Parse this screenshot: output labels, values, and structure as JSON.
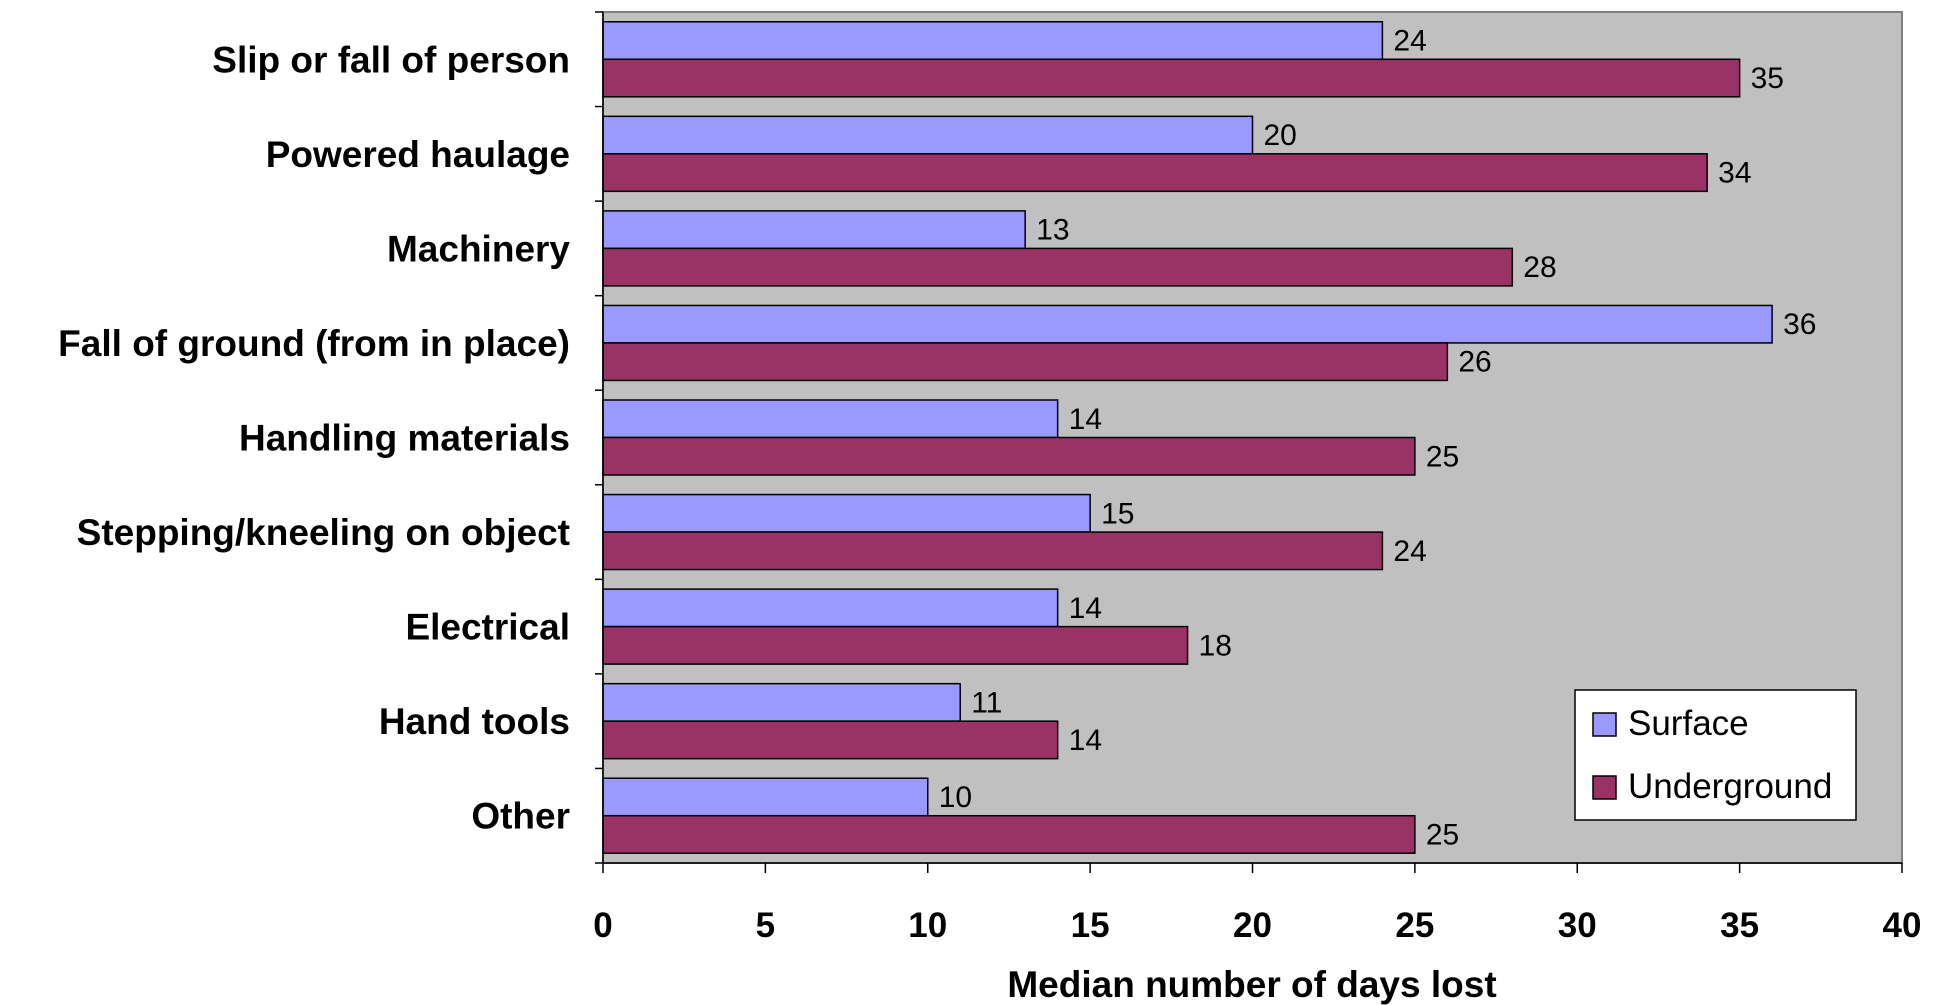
{
  "chart_data": {
    "type": "bar",
    "orientation": "horizontal",
    "categories": [
      "Slip or fall of person",
      "Powered haulage",
      "Machinery",
      "Fall of ground (from in place)",
      "Handling materials",
      "Stepping/kneeling on object",
      "Electrical",
      "Hand tools",
      "Other"
    ],
    "series": [
      {
        "name": "Surface",
        "color": "#9999ff",
        "values": [
          24,
          20,
          13,
          36,
          14,
          15,
          14,
          11,
          10
        ]
      },
      {
        "name": "Underground",
        "color": "#993366",
        "values": [
          35,
          34,
          28,
          26,
          25,
          24,
          18,
          14,
          25
        ]
      }
    ],
    "xlabel": "Median number of days lost",
    "ylabel": "",
    "xlim": [
      0,
      40
    ],
    "xticks": [
      "0",
      "5",
      "10",
      "15",
      "20",
      "25",
      "30",
      "35",
      "40"
    ],
    "data_labels": true,
    "grid": false,
    "legend_position": "bottom-right",
    "plot_background": "#c0c0c0"
  }
}
